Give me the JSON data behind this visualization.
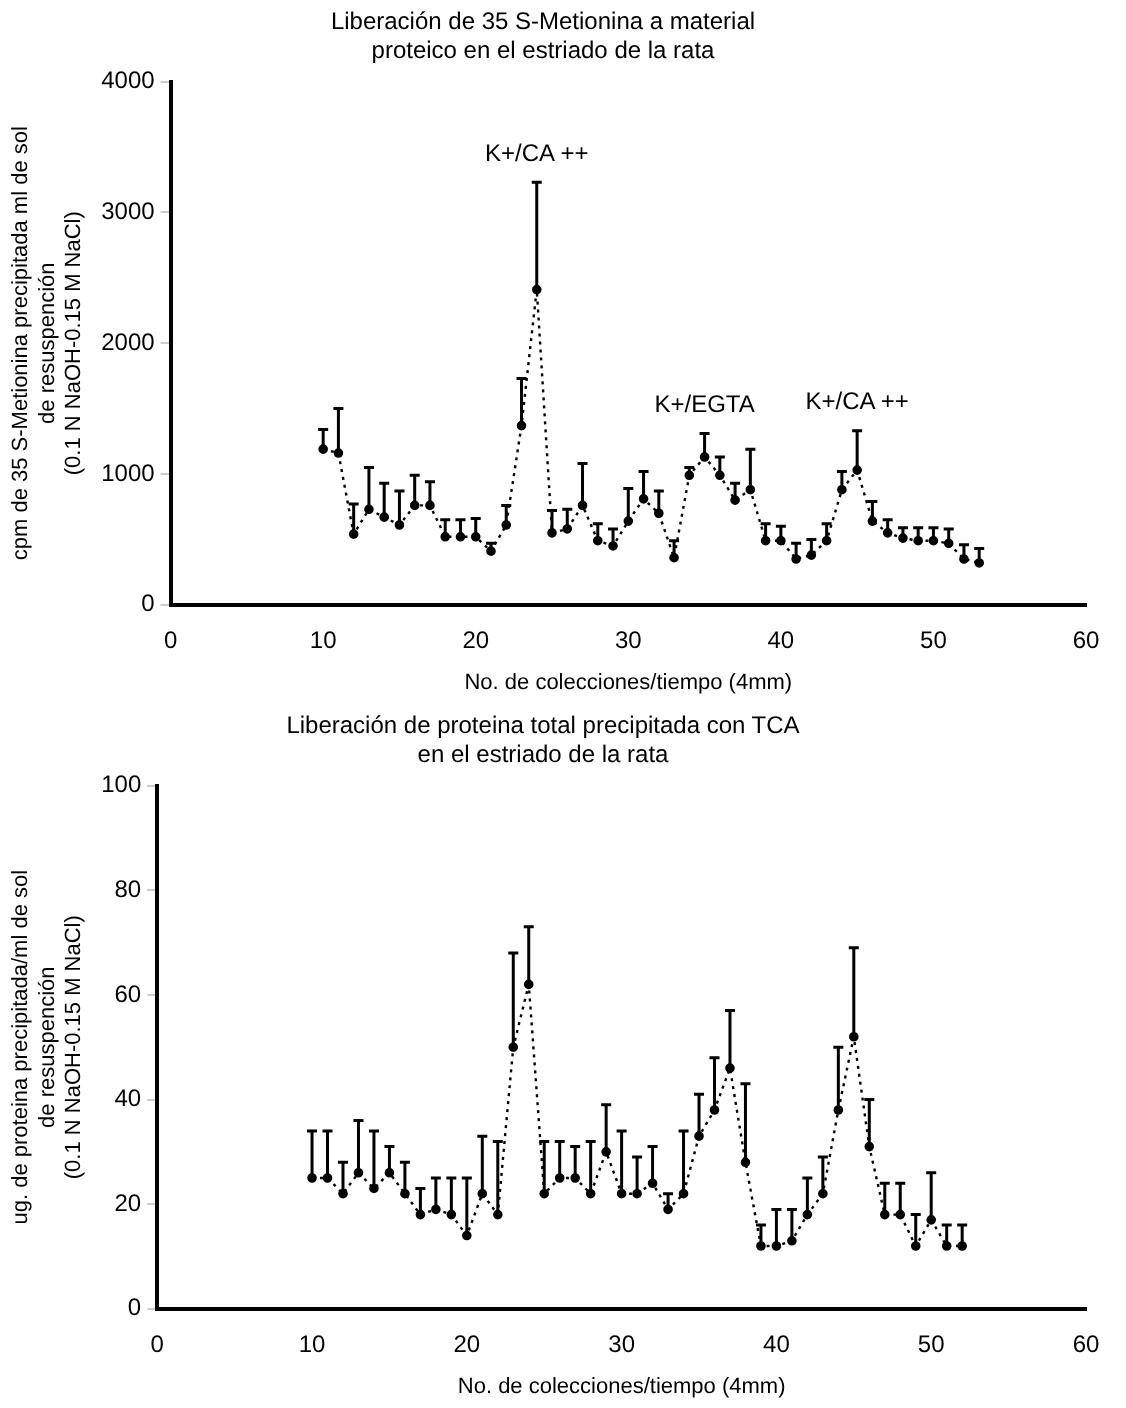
{
  "chart_data": [
    {
      "type": "line",
      "title": "Liberación de 35 S-Metionina a material\nproteico en el estriado de la rata",
      "xlabel": "No. de colecciones/tiempo (4mm)",
      "ylabel": "cpm de 35 S-Metionina precipitada ml de sol\nde resuspención\n(0.1 N NaOH-0.15 M NaCl)",
      "x": [
        10,
        11,
        12,
        13,
        14,
        15,
        16,
        17,
        18,
        19,
        20,
        21,
        22,
        23,
        24,
        25,
        26,
        27,
        28,
        29,
        30,
        31,
        32,
        33,
        34,
        35,
        36,
        37,
        38,
        39,
        40,
        41,
        42,
        43,
        44,
        45,
        46,
        47,
        48,
        49,
        50,
        51,
        52,
        53
      ],
      "series": [
        {
          "color": "#000000",
          "values": [
            1190,
            1160,
            540,
            730,
            670,
            610,
            760,
            760,
            520,
            520,
            520,
            410,
            610,
            1370,
            2410,
            550,
            580,
            760,
            490,
            450,
            640,
            810,
            700,
            360,
            990,
            1130,
            990,
            800,
            880,
            490,
            490,
            350,
            380,
            490,
            880,
            1030,
            640,
            550,
            510,
            490,
            490,
            470,
            350,
            320
          ],
          "errors": [
            [
              1190,
              1340
            ],
            [
              1160,
              1500
            ],
            [
              540,
              770
            ],
            [
              730,
              1050
            ],
            [
              670,
              930
            ],
            [
              610,
              870
            ],
            [
              760,
              990
            ],
            [
              760,
              940
            ],
            [
              520,
              650
            ],
            [
              520,
              650
            ],
            [
              520,
              660
            ],
            [
              410,
              470
            ],
            [
              610,
              760
            ],
            [
              1370,
              1730
            ],
            [
              2410,
              3230
            ],
            [
              550,
              720
            ],
            [
              580,
              730
            ],
            [
              760,
              1080
            ],
            [
              490,
              620
            ],
            [
              450,
              580
            ],
            [
              640,
              890
            ],
            [
              810,
              1020
            ],
            [
              700,
              870
            ],
            [
              360,
              490
            ],
            [
              990,
              1050
            ],
            [
              1130,
              1310
            ],
            [
              990,
              1130
            ],
            [
              800,
              930
            ],
            [
              880,
              1190
            ],
            [
              490,
              620
            ],
            [
              490,
              600
            ],
            [
              350,
              470
            ],
            [
              380,
              500
            ],
            [
              490,
              620
            ],
            [
              880,
              1020
            ],
            [
              1030,
              1330
            ],
            [
              640,
              790
            ],
            [
              550,
              650
            ],
            [
              510,
              590
            ],
            [
              490,
              590
            ],
            [
              490,
              590
            ],
            [
              470,
              580
            ],
            [
              350,
              460
            ],
            [
              320,
              430
            ]
          ]
        }
      ],
      "xlim": [
        0,
        60
      ],
      "xticks": [
        0,
        10,
        20,
        30,
        40,
        50,
        60
      ],
      "ylim": [
        0,
        4000
      ],
      "yticks": [
        0,
        1000,
        2000,
        3000,
        4000
      ],
      "grid": false,
      "legend": false,
      "marker": "circle",
      "line_style": "dotted",
      "annotations": [
        {
          "text": "K+/CA ++",
          "x": 24,
          "y": 3230
        },
        {
          "text": "K+/EGTA",
          "x": 35,
          "y": 1130
        },
        {
          "text": "K+/CA ++",
          "x": 45,
          "y": 1030
        }
      ]
    },
    {
      "type": "line",
      "title": "Liberación de proteina total precipitada con TCA\nen el estriado de la rata",
      "xlabel": "No. de colecciones/tiempo (4mm)",
      "ylabel": "ug. de proteina precipitada/ml de sol\nde resuspención\n(0.1 N NaOH-0.15 M NaCl)",
      "x": [
        10,
        11,
        12,
        13,
        14,
        15,
        16,
        17,
        18,
        19,
        20,
        21,
        22,
        23,
        24,
        25,
        26,
        27,
        28,
        29,
        30,
        31,
        32,
        33,
        34,
        35,
        36,
        37,
        38,
        39,
        40,
        41,
        42,
        43,
        44,
        45,
        46,
        47,
        48,
        49,
        50,
        51,
        52
      ],
      "series": [
        {
          "color": "#000000",
          "values": [
            25,
            25,
            22,
            26,
            23,
            26,
            22,
            18,
            19,
            18,
            14,
            22,
            18,
            50,
            62,
            22,
            25,
            25,
            22,
            30,
            22,
            22,
            24,
            19,
            22,
            33,
            38,
            46,
            28,
            12,
            12,
            13,
            18,
            22,
            38,
            52,
            31,
            18,
            18,
            12,
            17,
            12,
            12
          ],
          "errors": [
            [
              25,
              34
            ],
            [
              25,
              34
            ],
            [
              22,
              28
            ],
            [
              26,
              36
            ],
            [
              23,
              34
            ],
            [
              26,
              31
            ],
            [
              22,
              28
            ],
            [
              18,
              23
            ],
            [
              19,
              25
            ],
            [
              18,
              25
            ],
            [
              14,
              25
            ],
            [
              22,
              33
            ],
            [
              18,
              32
            ],
            [
              50,
              68
            ],
            [
              62,
              73
            ],
            [
              22,
              32
            ],
            [
              25,
              32
            ],
            [
              25,
              31
            ],
            [
              22,
              32
            ],
            [
              30,
              39
            ],
            [
              22,
              34
            ],
            [
              22,
              29
            ],
            [
              24,
              31
            ],
            [
              19,
              22
            ],
            [
              22,
              34
            ],
            [
              33,
              41
            ],
            [
              38,
              48
            ],
            [
              46,
              57
            ],
            [
              28,
              43
            ],
            [
              12,
              16
            ],
            [
              12,
              19
            ],
            [
              13,
              19
            ],
            [
              18,
              25
            ],
            [
              22,
              29
            ],
            [
              38,
              50
            ],
            [
              52,
              69
            ],
            [
              31,
              40
            ],
            [
              18,
              24
            ],
            [
              18,
              24
            ],
            [
              12,
              18
            ],
            [
              17,
              26
            ],
            [
              12,
              16
            ],
            [
              12,
              16
            ]
          ]
        }
      ],
      "xlim": [
        0,
        60
      ],
      "xticks": [
        0,
        10,
        20,
        30,
        40,
        50,
        60
      ],
      "ylim": [
        0,
        100
      ],
      "yticks": [
        0,
        20,
        40,
        60,
        80,
        100
      ],
      "grid": false,
      "legend": false,
      "marker": "circle",
      "line_style": "dotted"
    }
  ]
}
